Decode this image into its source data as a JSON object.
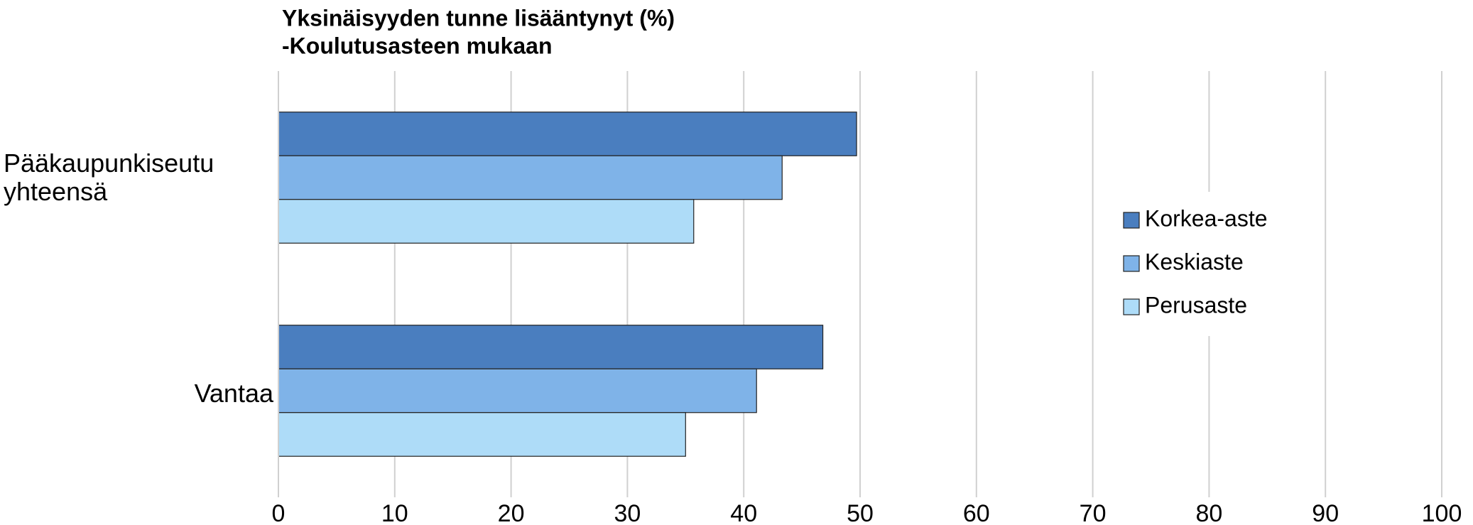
{
  "chart_data": {
    "type": "bar",
    "orientation": "horizontal",
    "title": "Yksinäisyyden tunne lisääntynyt (%)",
    "subtitle": "-Koulutusasteen mukaan",
    "categories": [
      "Pääkaupunkiseutu yhteensä",
      "Vantaa"
    ],
    "series": [
      {
        "name": "Korkea-aste",
        "color": "#4a7ebf",
        "values": [
          49.7,
          46.8
        ]
      },
      {
        "name": "Keskiaste",
        "color": "#7fb3e8",
        "values": [
          43.3,
          41.1
        ]
      },
      {
        "name": "Perusaste",
        "color": "#aedcf8",
        "values": [
          35.7,
          35.0
        ]
      }
    ],
    "xlim": [
      0,
      100
    ],
    "xticks": [
      0,
      10,
      20,
      30,
      40,
      50,
      60,
      70,
      80,
      90,
      100
    ],
    "grid": true,
    "legend": "right"
  }
}
